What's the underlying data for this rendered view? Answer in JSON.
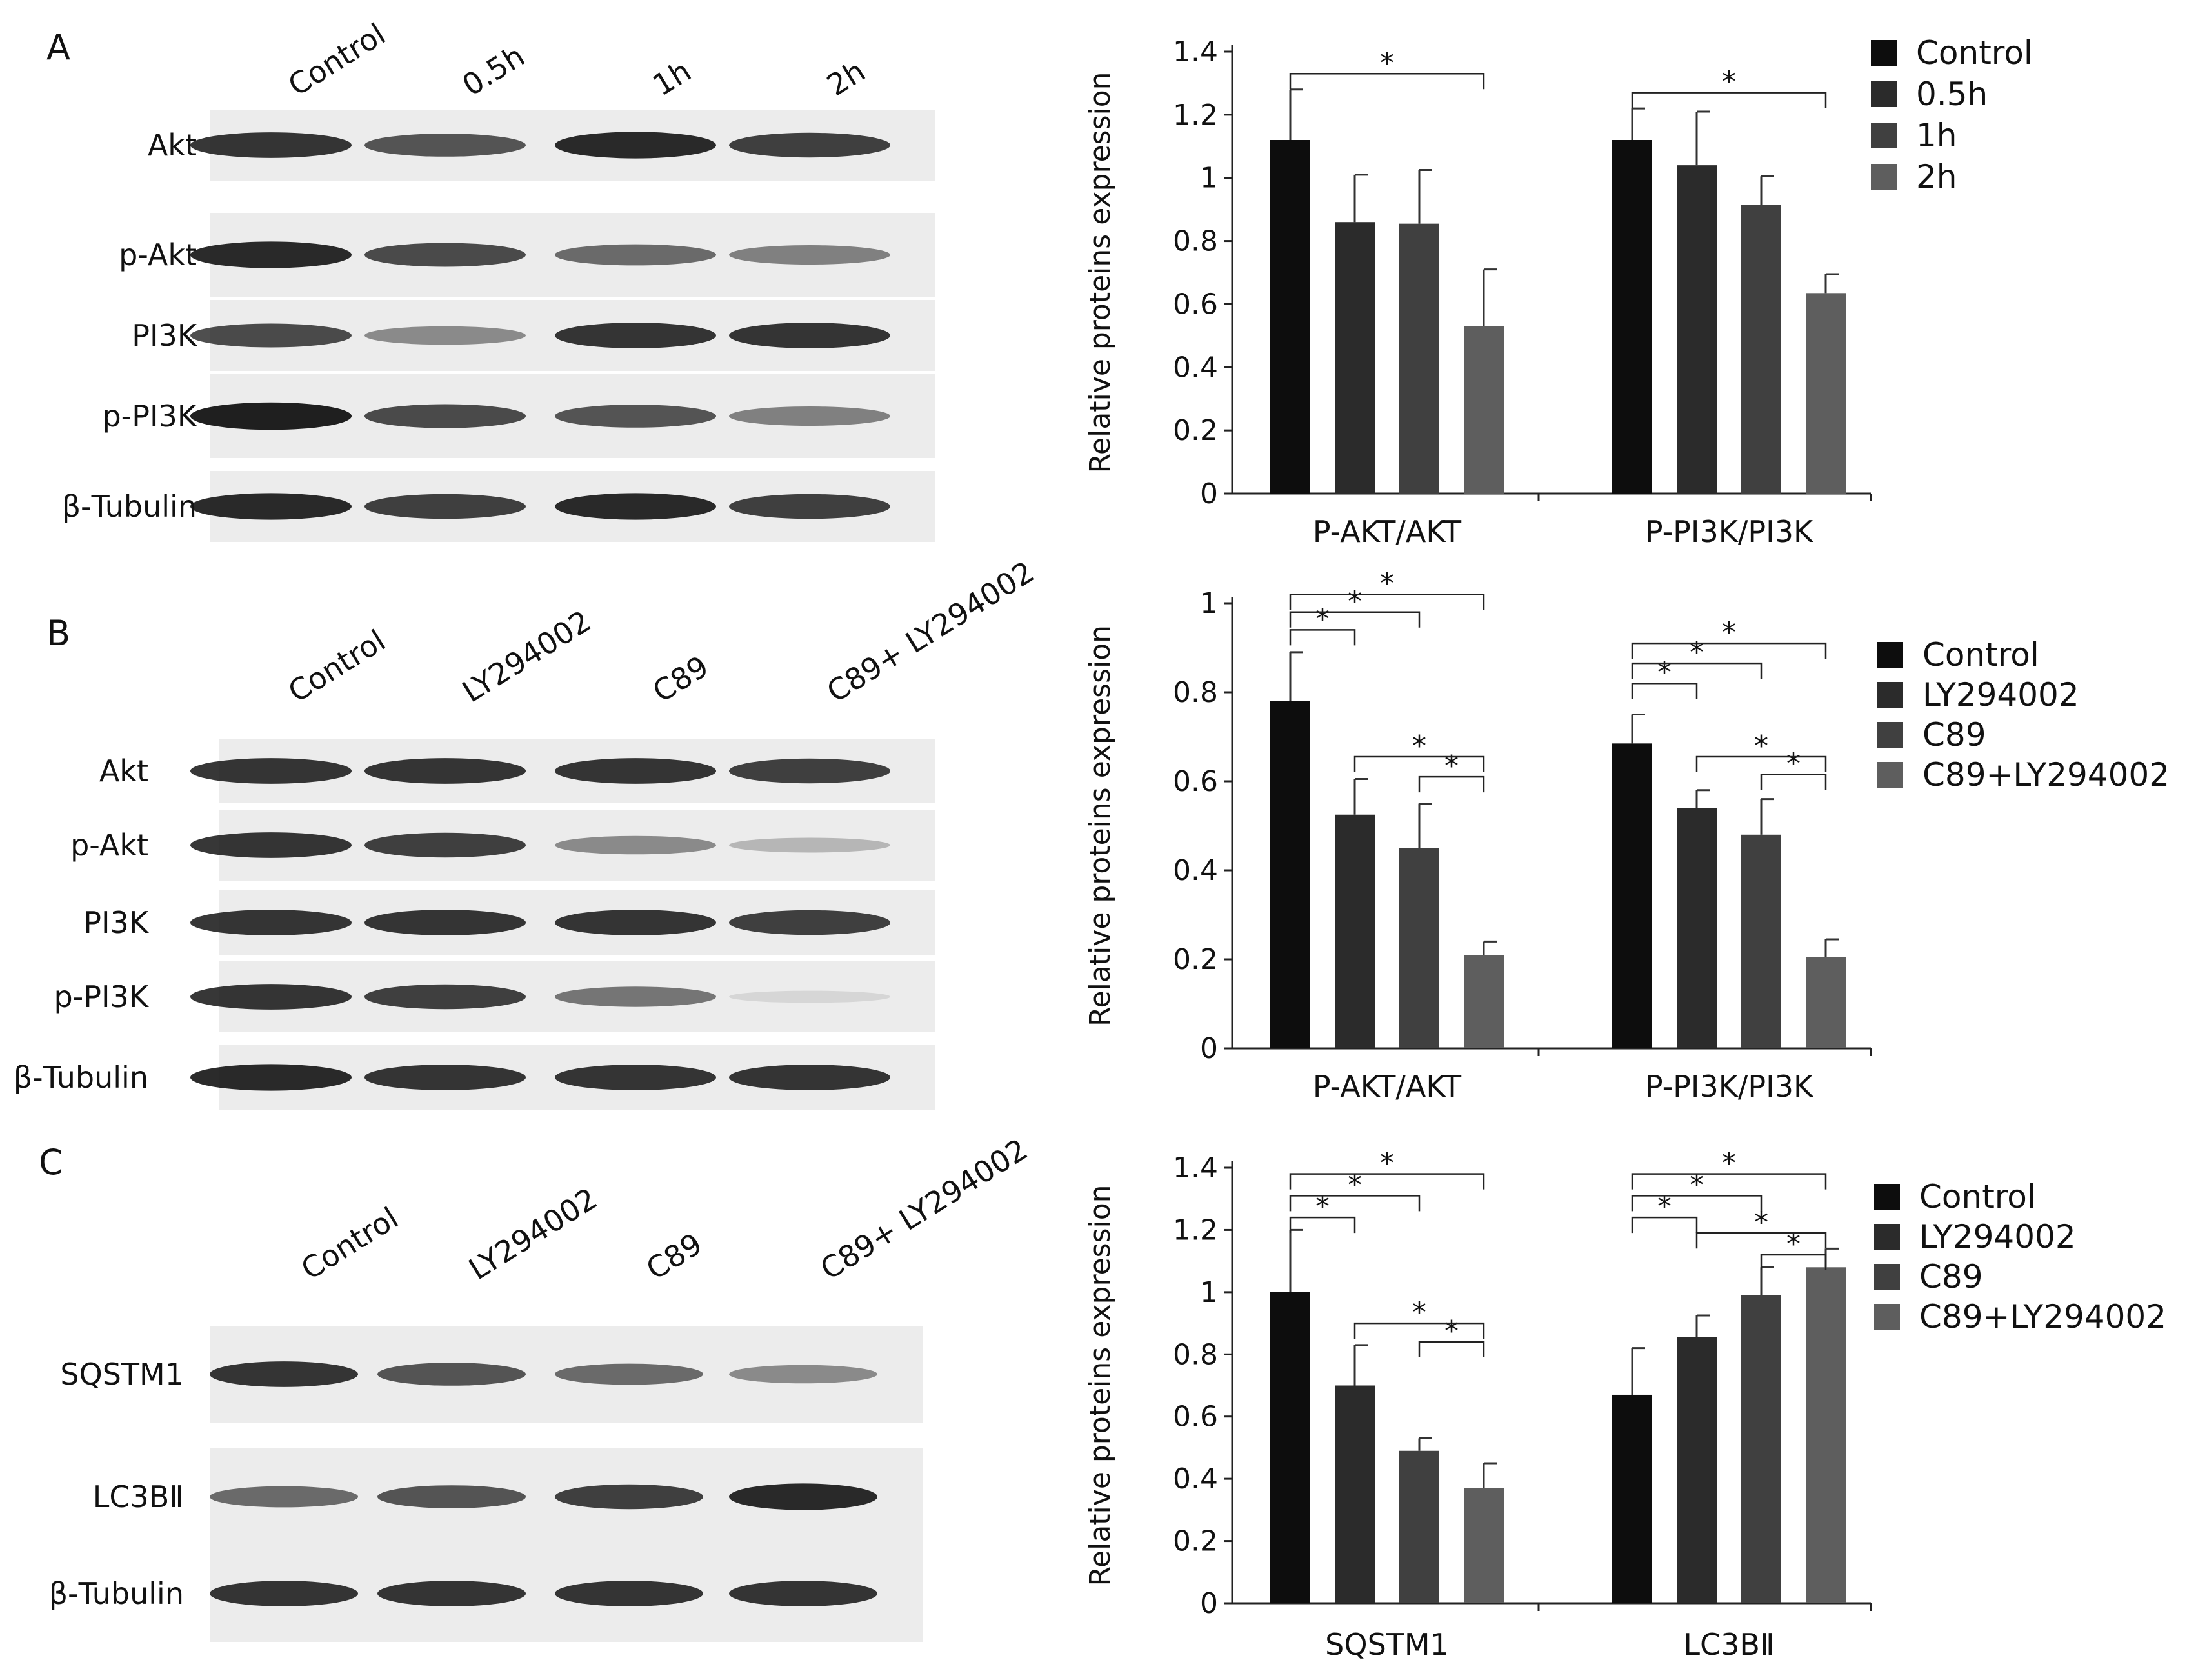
{
  "colors": {
    "series": [
      "#0d0d0d",
      "#2b2b2b",
      "#404040",
      "#5e5e5e"
    ],
    "band": "#141414",
    "blot_bg": "#ececec"
  },
  "panels": [
    {
      "letter": "A",
      "lanes": [
        "Control",
        "0.5h",
        "1h",
        "2h"
      ],
      "bands": [
        {
          "label": "Akt",
          "intensity": [
            0.85,
            0.7,
            0.9,
            0.8
          ]
        },
        {
          "label": "p-Akt",
          "intensity": [
            0.9,
            0.75,
            0.6,
            0.5
          ]
        },
        {
          "label": "PI3K",
          "intensity": [
            0.75,
            0.45,
            0.85,
            0.85
          ]
        },
        {
          "label": "p-PI3K",
          "intensity": [
            0.95,
            0.75,
            0.7,
            0.5
          ]
        },
        {
          "label": "β-Tubulin",
          "intensity": [
            0.9,
            0.8,
            0.9,
            0.8
          ]
        }
      ]
    },
    {
      "letter": "B",
      "lanes": [
        "Control",
        "LY294002",
        "C89",
        "C89+ LY294002"
      ],
      "bands": [
        {
          "label": "Akt",
          "intensity": [
            0.85,
            0.85,
            0.85,
            0.8
          ]
        },
        {
          "label": "p-Akt",
          "intensity": [
            0.85,
            0.8,
            0.45,
            0.25
          ]
        },
        {
          "label": "PI3K",
          "intensity": [
            0.85,
            0.85,
            0.85,
            0.8
          ]
        },
        {
          "label": "p-PI3K",
          "intensity": [
            0.85,
            0.8,
            0.55,
            0.1
          ]
        },
        {
          "label": "β-Tubulin",
          "intensity": [
            0.9,
            0.85,
            0.85,
            0.85
          ]
        }
      ]
    },
    {
      "letter": "C",
      "lanes": [
        "Control",
        "LY294002",
        "C89",
        "C89+ LY294002"
      ],
      "bands": [
        {
          "label": "SQSTM1",
          "intensity": [
            0.85,
            0.7,
            0.6,
            0.45
          ]
        },
        {
          "label": "LC3BⅡ",
          "intensity": [
            0.6,
            0.7,
            0.8,
            0.9
          ]
        },
        {
          "label": "β-Tubulin",
          "intensity": [
            0.85,
            0.85,
            0.85,
            0.85
          ]
        }
      ]
    }
  ],
  "chart_data": [
    {
      "type": "bar",
      "ylabel": "Relative proteins expression",
      "ylim": [
        0,
        1.4
      ],
      "yticks": [
        "0",
        "0.2",
        "0.4",
        "0.6",
        "0.8",
        "1",
        "1.2",
        "1.4"
      ],
      "categories": [
        "P-AKT/AKT",
        "P-PI3K/PI3K"
      ],
      "series": [
        {
          "name": "Control",
          "values": [
            1.12,
            1.12
          ],
          "errors": [
            0.16,
            0.1
          ]
        },
        {
          "name": "0.5h",
          "values": [
            0.86,
            1.04
          ],
          "errors": [
            0.15,
            0.17
          ]
        },
        {
          "name": "1h",
          "values": [
            0.855,
            0.915
          ],
          "errors": [
            0.17,
            0.09
          ]
        },
        {
          "name": "2h",
          "values": [
            0.53,
            0.635
          ],
          "errors": [
            0.18,
            0.06
          ]
        }
      ],
      "significance": [
        {
          "category": 0,
          "from": 0,
          "to": 3,
          "y": 1.33,
          "label": "*"
        },
        {
          "category": 1,
          "from": 0,
          "to": 3,
          "y": 1.27,
          "label": "*"
        }
      ],
      "legend": "top-right"
    },
    {
      "type": "bar",
      "ylabel": "Relative proteins expression",
      "ylim": [
        0,
        1
      ],
      "yticks": [
        "0",
        "0.2",
        "0.4",
        "0.6",
        "0.8",
        "1"
      ],
      "categories": [
        "P-AKT/AKT",
        "P-PI3K/PI3K"
      ],
      "series": [
        {
          "name": "Control",
          "values": [
            0.78,
            0.685
          ],
          "errors": [
            0.11,
            0.065
          ]
        },
        {
          "name": "LY294002",
          "values": [
            0.525,
            0.54
          ],
          "errors": [
            0.08,
            0.04
          ]
        },
        {
          "name": "C89",
          "values": [
            0.45,
            0.48
          ],
          "errors": [
            0.1,
            0.08
          ]
        },
        {
          "name": "C89+LY294002",
          "values": [
            0.21,
            0.205
          ],
          "errors": [
            0.03,
            0.04
          ]
        }
      ],
      "significance": [
        {
          "category": 0,
          "from": 0,
          "to": 1,
          "y": 0.94,
          "label": "*"
        },
        {
          "category": 0,
          "from": 0,
          "to": 2,
          "y": 0.98,
          "label": "*"
        },
        {
          "category": 0,
          "from": 0,
          "to": 3,
          "y": 1.02,
          "label": "*"
        },
        {
          "category": 0,
          "from": 2,
          "to": 3,
          "y": 0.61,
          "label": "*"
        },
        {
          "category": 0,
          "from": 1,
          "to": 3,
          "y": 0.655,
          "label": "*"
        },
        {
          "category": 1,
          "from": 0,
          "to": 1,
          "y": 0.82,
          "label": "*"
        },
        {
          "category": 1,
          "from": 0,
          "to": 2,
          "y": 0.865,
          "label": "*"
        },
        {
          "category": 1,
          "from": 0,
          "to": 3,
          "y": 0.91,
          "label": "*"
        },
        {
          "category": 1,
          "from": 2,
          "to": 3,
          "y": 0.615,
          "label": "*"
        },
        {
          "category": 1,
          "from": 1,
          "to": 3,
          "y": 0.655,
          "label": "*"
        }
      ],
      "legend": "right"
    },
    {
      "type": "bar",
      "ylabel": "Relative proteins expression",
      "ylim": [
        0,
        1.4
      ],
      "yticks": [
        "0",
        "0.2",
        "0.4",
        "0.6",
        "0.8",
        "1",
        "1.2",
        "1.4"
      ],
      "categories": [
        "SQSTM1",
        "LC3BⅡ"
      ],
      "series": [
        {
          "name": "Control",
          "values": [
            1.0,
            0.67
          ],
          "errors": [
            0.2,
            0.15
          ]
        },
        {
          "name": "LY294002",
          "values": [
            0.7,
            0.855
          ],
          "errors": [
            0.13,
            0.07
          ]
        },
        {
          "name": "C89",
          "values": [
            0.49,
            0.99
          ],
          "errors": [
            0.04,
            0.09
          ]
        },
        {
          "name": "C89+LY294002",
          "values": [
            0.37,
            1.08
          ],
          "errors": [
            0.08,
            0.06
          ]
        }
      ],
      "significance": [
        {
          "category": 0,
          "from": 0,
          "to": 1,
          "y": 1.24,
          "label": "*"
        },
        {
          "category": 0,
          "from": 0,
          "to": 2,
          "y": 1.31,
          "label": "*"
        },
        {
          "category": 0,
          "from": 0,
          "to": 3,
          "y": 1.38,
          "label": "*"
        },
        {
          "category": 0,
          "from": 2,
          "to": 3,
          "y": 0.84,
          "label": "*"
        },
        {
          "category": 0,
          "from": 1,
          "to": 3,
          "y": 0.9,
          "label": "*"
        },
        {
          "category": 1,
          "from": 0,
          "to": 1,
          "y": 1.24,
          "label": "*"
        },
        {
          "category": 1,
          "from": 0,
          "to": 2,
          "y": 1.31,
          "label": "*"
        },
        {
          "category": 1,
          "from": 0,
          "to": 3,
          "y": 1.38,
          "label": "*"
        },
        {
          "category": 1,
          "from": 2,
          "to": 3,
          "y": 1.12,
          "label": "*"
        },
        {
          "category": 1,
          "from": 1,
          "to": 3,
          "y": 1.19,
          "label": "*"
        }
      ],
      "legend": "right"
    }
  ]
}
